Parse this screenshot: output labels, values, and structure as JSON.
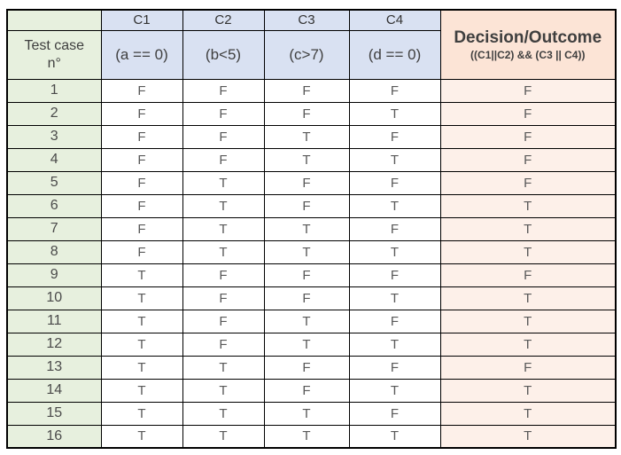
{
  "colors": {
    "row_header_bg": "#E7F0DE",
    "condition_bg": "#D9E1F2",
    "decision_header_bg": "#FCE4D6",
    "decision_cell_bg": "#FDF0E9",
    "border": "#000000",
    "header_text": "#3F3F3F",
    "value_text": "#595959"
  },
  "table": {
    "corner_label": "",
    "row_header": {
      "line1": "Test case",
      "line2": "n°"
    },
    "conditions": [
      {
        "id": "C1",
        "expr": "(a == 0)"
      },
      {
        "id": "C2",
        "expr": "(b<5)"
      },
      {
        "id": "C3",
        "expr": "(c>7)"
      },
      {
        "id": "C4",
        "expr": "(d == 0)"
      }
    ],
    "decision": {
      "title": "Decision/Outcome",
      "formula": "((C1||C2) && (C3 || C4))"
    },
    "rows": [
      {
        "n": "1",
        "c1": "F",
        "c2": "F",
        "c3": "F",
        "c4": "F",
        "decision": "F"
      },
      {
        "n": "2",
        "c1": "F",
        "c2": "F",
        "c3": "F",
        "c4": "T",
        "decision": "F"
      },
      {
        "n": "3",
        "c1": "F",
        "c2": "F",
        "c3": "T",
        "c4": "F",
        "decision": "F"
      },
      {
        "n": "4",
        "c1": "F",
        "c2": "F",
        "c3": "T",
        "c4": "T",
        "decision": "F"
      },
      {
        "n": "5",
        "c1": "F",
        "c2": "T",
        "c3": "F",
        "c4": "F",
        "decision": "F"
      },
      {
        "n": "6",
        "c1": "F",
        "c2": "T",
        "c3": "F",
        "c4": "T",
        "decision": "T"
      },
      {
        "n": "7",
        "c1": "F",
        "c2": "T",
        "c3": "T",
        "c4": "F",
        "decision": "T"
      },
      {
        "n": "8",
        "c1": "F",
        "c2": "T",
        "c3": "T",
        "c4": "T",
        "decision": "T"
      },
      {
        "n": "9",
        "c1": "T",
        "c2": "F",
        "c3": "F",
        "c4": "F",
        "decision": "F"
      },
      {
        "n": "10",
        "c1": "T",
        "c2": "F",
        "c3": "F",
        "c4": "T",
        "decision": "T"
      },
      {
        "n": "11",
        "c1": "T",
        "c2": "F",
        "c3": "T",
        "c4": "F",
        "decision": "T"
      },
      {
        "n": "12",
        "c1": "T",
        "c2": "F",
        "c3": "T",
        "c4": "T",
        "decision": "T"
      },
      {
        "n": "13",
        "c1": "T",
        "c2": "T",
        "c3": "F",
        "c4": "F",
        "decision": "F"
      },
      {
        "n": "14",
        "c1": "T",
        "c2": "T",
        "c3": "F",
        "c4": "T",
        "decision": "T"
      },
      {
        "n": "15",
        "c1": "T",
        "c2": "T",
        "c3": "T",
        "c4": "F",
        "decision": "T"
      },
      {
        "n": "16",
        "c1": "T",
        "c2": "T",
        "c3": "T",
        "c4": "T",
        "decision": "T"
      }
    ]
  }
}
